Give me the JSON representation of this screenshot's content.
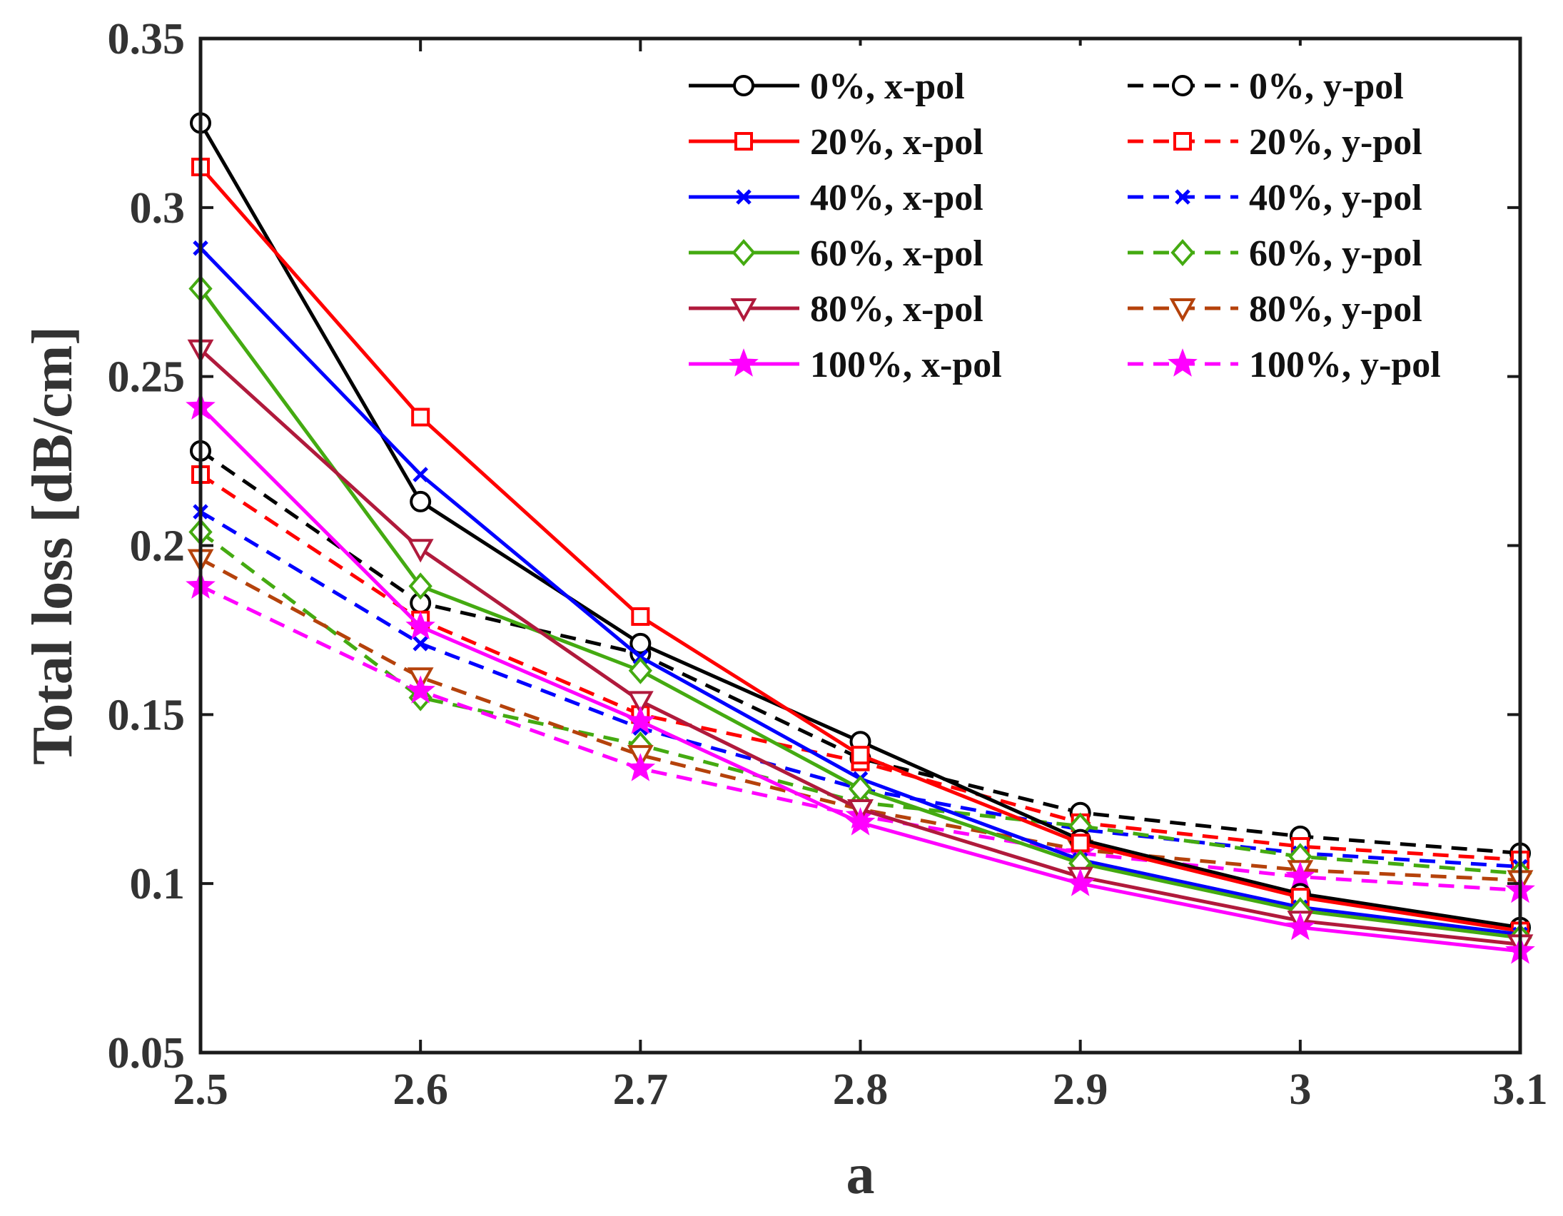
{
  "chart_data": {
    "type": "line",
    "title": "",
    "xlabel": "a",
    "ylabel": "Total loss [dB/cm]",
    "xlim": [
      2.5,
      3.1
    ],
    "ylim": [
      0.05,
      0.35
    ],
    "x": [
      2.5,
      2.6,
      2.7,
      2.8,
      2.9,
      3.0,
      3.1
    ],
    "xticks": [
      2.5,
      2.6,
      2.7,
      2.8,
      2.9,
      3.0,
      3.1
    ],
    "xtick_labels": [
      "2.5",
      "2.6",
      "2.7",
      "2.8",
      "2.9",
      "3",
      "3.1"
    ],
    "yticks": [
      0.05,
      0.1,
      0.15,
      0.2,
      0.25,
      0.3,
      0.35
    ],
    "ytick_labels": [
      "0.05",
      "0.1",
      "0.15",
      "0.2",
      "0.25",
      "0.3",
      "0.35"
    ],
    "grid": false,
    "legend_position": "top-right",
    "series": [
      {
        "name": "0%, x-pol",
        "color": "#000000",
        "dash": "solid",
        "marker": "circle",
        "values": [
          0.325,
          0.213,
          0.171,
          0.142,
          0.113,
          0.097,
          0.087
        ]
      },
      {
        "name": "20%, x-pol",
        "color": "#ff0000",
        "dash": "solid",
        "marker": "square",
        "values": [
          0.312,
          0.238,
          0.179,
          0.138,
          0.112,
          0.096,
          0.086
        ]
      },
      {
        "name": "40%, x-pol",
        "color": "#0000ff",
        "dash": "solid",
        "marker": "x",
        "values": [
          0.288,
          0.221,
          0.167,
          0.131,
          0.107,
          0.093,
          0.085
        ]
      },
      {
        "name": "60%, x-pol",
        "color": "#44aa11",
        "dash": "solid",
        "marker": "diamond",
        "values": [
          0.276,
          0.188,
          0.163,
          0.128,
          0.106,
          0.092,
          0.084
        ]
      },
      {
        "name": "80%, x-pol",
        "color": "#b01a3c",
        "dash": "solid",
        "marker": "triangle-down",
        "values": [
          0.258,
          0.199,
          0.154,
          0.122,
          0.102,
          0.089,
          0.082
        ]
      },
      {
        "name": "100%, x-pol",
        "color": "#ff00ff",
        "dash": "solid",
        "marker": "star",
        "values": [
          0.241,
          0.176,
          0.148,
          0.118,
          0.1,
          0.087,
          0.08
        ]
      },
      {
        "name": "0%, y-pol",
        "color": "#000000",
        "dash": "dashed",
        "marker": "circle",
        "values": [
          0.228,
          0.183,
          0.168,
          0.137,
          0.121,
          0.114,
          0.109
        ]
      },
      {
        "name": "20%, y-pol",
        "color": "#ff0000",
        "dash": "dashed",
        "marker": "square",
        "values": [
          0.221,
          0.178,
          0.15,
          0.136,
          0.118,
          0.111,
          0.107
        ]
      },
      {
        "name": "40%, y-pol",
        "color": "#0000ff",
        "dash": "dashed",
        "marker": "x",
        "values": [
          0.21,
          0.171,
          0.146,
          0.128,
          0.116,
          0.109,
          0.105
        ]
      },
      {
        "name": "60%, y-pol",
        "color": "#44aa11",
        "dash": "dashed",
        "marker": "diamond",
        "values": [
          0.204,
          0.155,
          0.141,
          0.124,
          0.117,
          0.108,
          0.103
        ]
      },
      {
        "name": "80%, y-pol",
        "color": "#b5420b",
        "dash": "dashed",
        "marker": "triangle-down",
        "values": [
          0.196,
          0.161,
          0.138,
          0.122,
          0.11,
          0.104,
          0.101
        ]
      },
      {
        "name": "100%, y-pol",
        "color": "#ff00ff",
        "dash": "dashed",
        "marker": "star",
        "values": [
          0.188,
          0.157,
          0.134,
          0.12,
          0.109,
          0.102,
          0.098
        ]
      }
    ]
  }
}
